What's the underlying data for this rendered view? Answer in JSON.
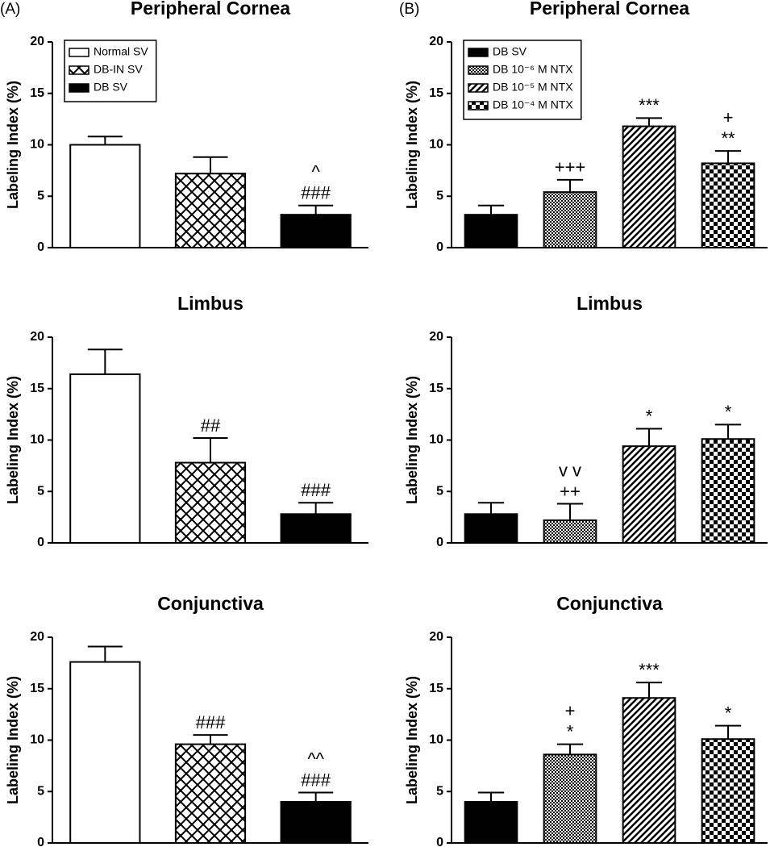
{
  "chart_data": [
    {
      "type": "bar",
      "label": "(A)",
      "title": "Peripheral Cornea",
      "ylabel": "Labeling Index (%)",
      "ylim": [
        0,
        20
      ],
      "yticks": [
        0,
        5,
        10,
        15,
        20
      ],
      "legend": true,
      "series": [
        {
          "name": "Normal SV",
          "pattern": "white",
          "values": [
            10
          ],
          "errors": [
            0.8
          ]
        },
        {
          "name": "DB-IN SV",
          "pattern": "crosshatch",
          "values": [
            7.2
          ],
          "errors": [
            1.6
          ]
        },
        {
          "name": "DB SV",
          "pattern": "black",
          "values": [
            3.2
          ],
          "errors": [
            0.9
          ],
          "annotations": [
            [
              "^",
              "###"
            ]
          ]
        }
      ]
    },
    {
      "type": "bar",
      "title": "Limbus",
      "ylabel": "Labeling Index (%)",
      "ylim": [
        0,
        20
      ],
      "yticks": [
        0,
        5,
        10,
        15,
        20
      ],
      "series": [
        {
          "pattern": "white",
          "values": [
            16.4
          ],
          "errors": [
            2.4
          ]
        },
        {
          "pattern": "crosshatch",
          "values": [
            7.8
          ],
          "errors": [
            2.4
          ],
          "annotations": [
            [
              "##"
            ]
          ]
        },
        {
          "pattern": "black",
          "values": [
            2.8
          ],
          "errors": [
            1.1
          ],
          "annotations": [
            [
              "###"
            ]
          ]
        }
      ]
    },
    {
      "type": "bar",
      "title": "Conjunctiva",
      "ylabel": "Labeling Index (%)",
      "ylim": [
        0,
        20
      ],
      "yticks": [
        0,
        5,
        10,
        15,
        20
      ],
      "series": [
        {
          "pattern": "white",
          "values": [
            17.6
          ],
          "errors": [
            1.5
          ]
        },
        {
          "pattern": "crosshatch",
          "values": [
            9.6
          ],
          "errors": [
            0.9
          ],
          "annotations": [
            [
              "###"
            ]
          ]
        },
        {
          "pattern": "black",
          "values": [
            4.0
          ],
          "errors": [
            0.9
          ],
          "annotations": [
            [
              "^^",
              "###"
            ]
          ]
        }
      ]
    },
    {
      "type": "bar",
      "label": "(B)",
      "title": "Peripheral Cornea",
      "ylabel": "Labeling Index (%)",
      "ylim": [
        0,
        20
      ],
      "yticks": [
        0,
        5,
        10,
        15,
        20
      ],
      "legend": true,
      "series": [
        {
          "name": "DB SV",
          "pattern": "black",
          "values": [
            3.2
          ],
          "errors": [
            0.9
          ]
        },
        {
          "name": "DB 10⁻⁶ M NTX",
          "pattern": "dots",
          "values": [
            5.4
          ],
          "errors": [
            1.2
          ],
          "annotations": [
            [
              "+++"
            ]
          ]
        },
        {
          "name": "DB 10⁻⁵ M NTX",
          "pattern": "hatch",
          "values": [
            11.8
          ],
          "errors": [
            0.8
          ],
          "annotations": [
            [
              "***"
            ]
          ]
        },
        {
          "name": "DB 10⁻⁴ M NTX",
          "pattern": "checker",
          "values": [
            8.2
          ],
          "errors": [
            1.2
          ],
          "annotations": [
            [
              "+",
              "**"
            ]
          ]
        }
      ]
    },
    {
      "type": "bar",
      "title": "Limbus",
      "ylabel": "Labeling Index (%)",
      "ylim": [
        0,
        20
      ],
      "yticks": [
        0,
        5,
        10,
        15,
        20
      ],
      "series": [
        {
          "pattern": "black",
          "values": [
            2.8
          ],
          "errors": [
            1.1
          ]
        },
        {
          "pattern": "dots",
          "values": [
            2.2
          ],
          "errors": [
            1.6
          ],
          "annotations": [
            [
              "v v",
              "++"
            ]
          ]
        },
        {
          "pattern": "hatch",
          "values": [
            9.4
          ],
          "errors": [
            1.7
          ],
          "annotations": [
            [
              "*"
            ]
          ]
        },
        {
          "pattern": "checker",
          "values": [
            10.1
          ],
          "errors": [
            1.4
          ],
          "annotations": [
            [
              "*"
            ]
          ]
        }
      ]
    },
    {
      "type": "bar",
      "title": "Conjunctiva",
      "ylabel": "Labeling Index (%)",
      "ylim": [
        0,
        20
      ],
      "yticks": [
        0,
        5,
        10,
        15,
        20
      ],
      "series": [
        {
          "pattern": "black",
          "values": [
            4.0
          ],
          "errors": [
            0.9
          ]
        },
        {
          "pattern": "dots",
          "values": [
            8.6
          ],
          "errors": [
            1.0
          ],
          "annotations": [
            [
              "+",
              "*"
            ]
          ]
        },
        {
          "pattern": "hatch",
          "values": [
            14.1
          ],
          "errors": [
            1.5
          ],
          "annotations": [
            [
              "***"
            ]
          ]
        },
        {
          "pattern": "checker",
          "values": [
            10.1
          ],
          "errors": [
            1.3
          ],
          "annotations": [
            [
              "*"
            ]
          ]
        }
      ]
    }
  ]
}
